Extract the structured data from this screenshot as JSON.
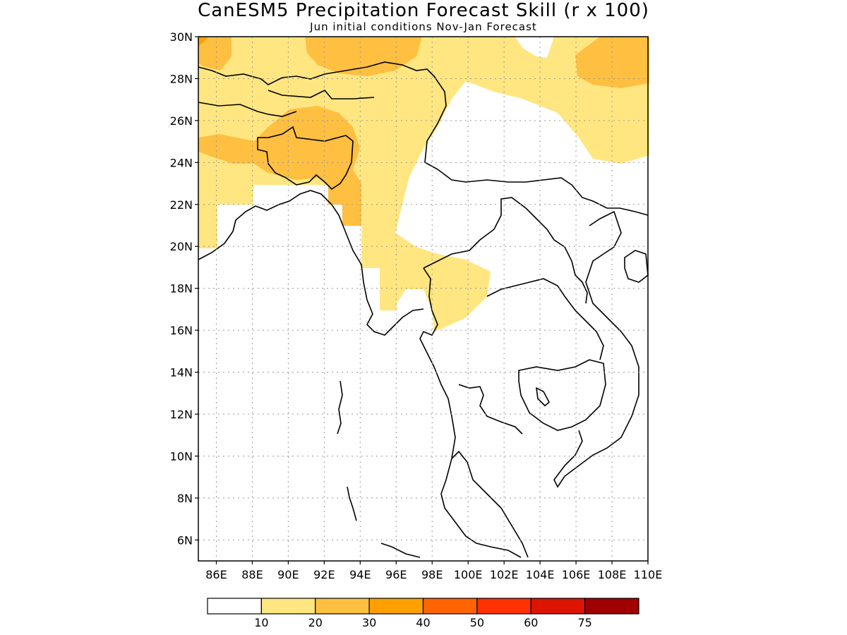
{
  "header": {
    "title": "CanESM5 Precipitation Forecast Skill (r x 100)",
    "subtitle": "Jun initial conditions  Nov-Jan Forecast"
  },
  "map": {
    "lon_range": [
      85,
      110
    ],
    "lat_range": [
      5,
      30
    ],
    "lat_ticks": [
      {
        "value": 30,
        "label": "30N"
      },
      {
        "value": 28,
        "label": "28N"
      },
      {
        "value": 26,
        "label": "26N"
      },
      {
        "value": 24,
        "label": "24N"
      },
      {
        "value": 22,
        "label": "22N"
      },
      {
        "value": 20,
        "label": "20N"
      },
      {
        "value": 18,
        "label": "18N"
      },
      {
        "value": 16,
        "label": "16N"
      },
      {
        "value": 14,
        "label": "14N"
      },
      {
        "value": 12,
        "label": "12N"
      },
      {
        "value": 10,
        "label": "10N"
      },
      {
        "value": 8,
        "label": "8N"
      },
      {
        "value": 6,
        "label": "6N"
      }
    ],
    "lon_ticks": [
      {
        "value": 86,
        "label": "86E"
      },
      {
        "value": 88,
        "label": "88E"
      },
      {
        "value": 90,
        "label": "90E"
      },
      {
        "value": 92,
        "label": "92E"
      },
      {
        "value": 94,
        "label": "94E"
      },
      {
        "value": 96,
        "label": "96E"
      },
      {
        "value": 98,
        "label": "98E"
      },
      {
        "value": 100,
        "label": "100E"
      },
      {
        "value": 102,
        "label": "102E"
      },
      {
        "value": 104,
        "label": "104E"
      },
      {
        "value": 106,
        "label": "106E"
      },
      {
        "value": 108,
        "label": "108E"
      },
      {
        "value": 110,
        "label": "110E"
      }
    ],
    "grid": true
  },
  "colorbar": {
    "colors": [
      "#ffffff",
      "#ffe680",
      "#ffbf40",
      "#ffa000",
      "#ff6400",
      "#ff3200",
      "#dc1400",
      "#a00000"
    ],
    "labels": [
      "10",
      "20",
      "30",
      "40",
      "50",
      "60",
      "75"
    ]
  }
}
